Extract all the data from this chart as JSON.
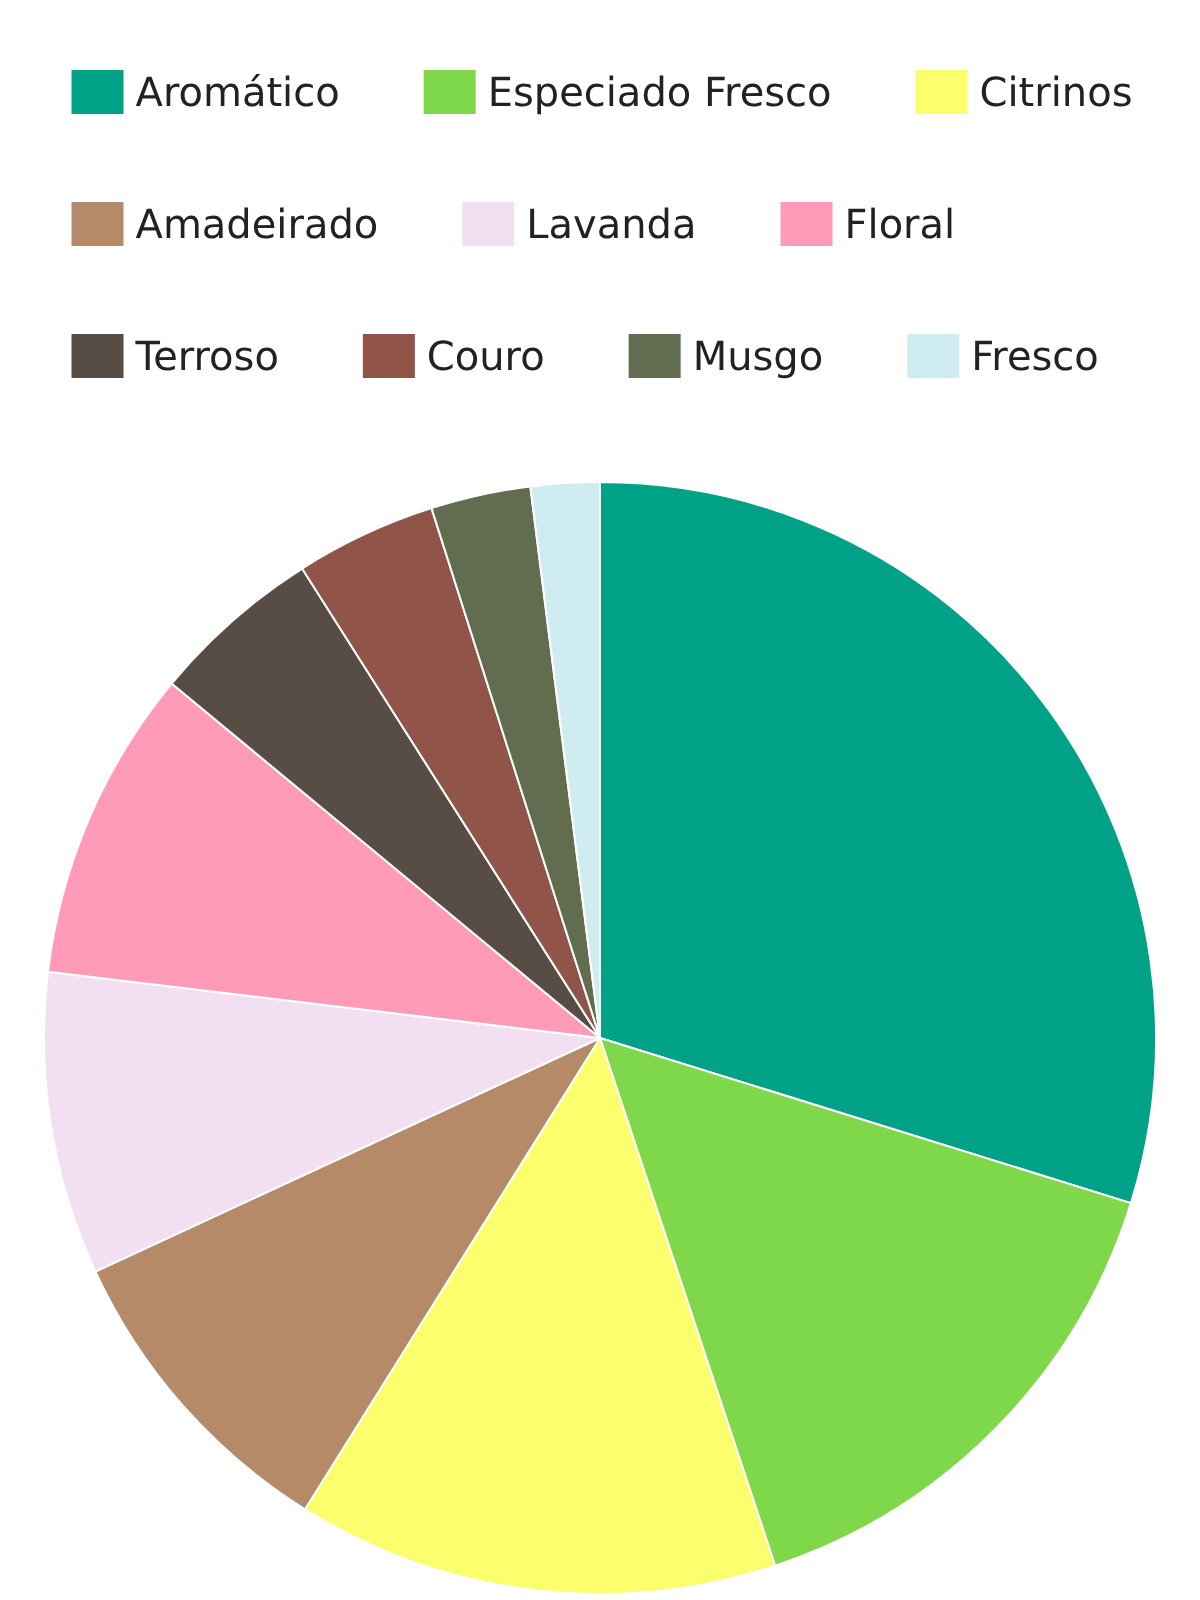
{
  "chart_data": {
    "type": "pie",
    "categories": [
      "Aromático",
      "Especiado Fresco",
      "Citrinos",
      "Amadeirado",
      "Lavanda",
      "Floral",
      "Terroso",
      "Couro",
      "Musgo",
      "Fresco"
    ],
    "values": [
      29.8,
      15.1,
      14,
      9.2,
      8.8,
      9.1,
      5,
      4.1,
      2.9,
      2
    ],
    "colors": [
      "#00a287",
      "#7ed84a",
      "#fbff6b",
      "#b58a69",
      "#f3dff2",
      "#ff9bb8",
      "#574d45",
      "#915448",
      "#626d50",
      "#cfedf0"
    ],
    "legend": "top"
  }
}
